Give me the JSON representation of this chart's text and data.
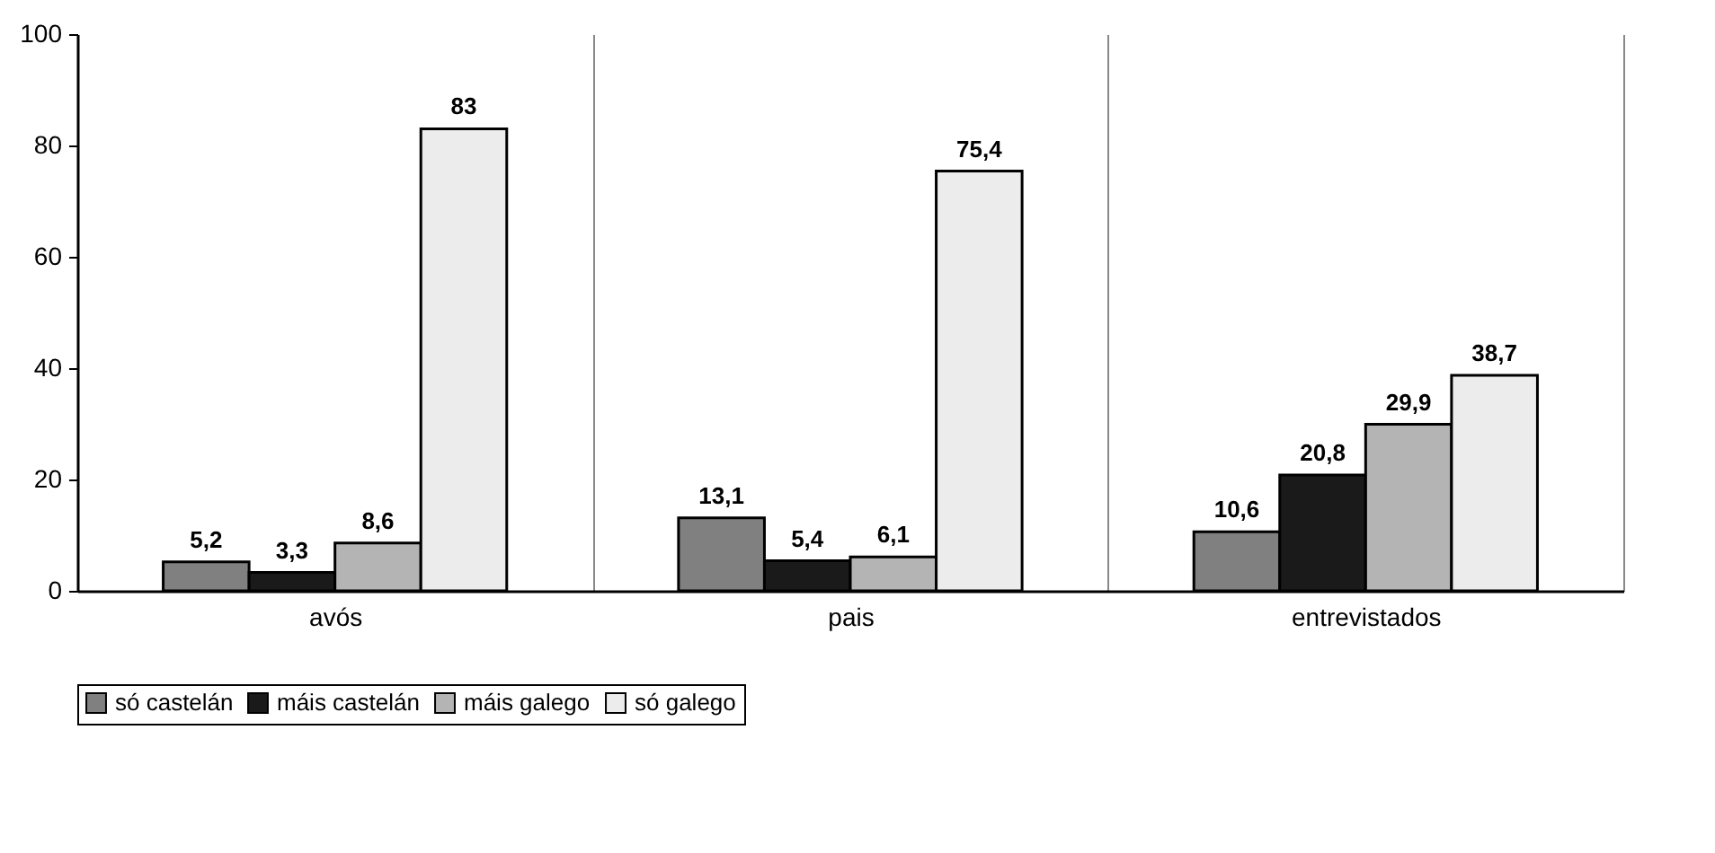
{
  "chart_data": {
    "type": "bar",
    "categories": [
      "avós",
      "pais",
      "entrevistados"
    ],
    "series": [
      {
        "name": "só castelán",
        "color": "#808080",
        "values": [
          5.2,
          13.1,
          10.6
        ],
        "value_labels": [
          "5,2",
          "13,1",
          "10,6"
        ]
      },
      {
        "name": "máis castelán",
        "color": "#1a1a1a",
        "values": [
          3.3,
          5.4,
          20.8
        ],
        "value_labels": [
          "3,3",
          "5,4",
          "20,8"
        ]
      },
      {
        "name": "máis galego",
        "color": "#b4b4b4",
        "values": [
          8.6,
          6.1,
          29.9
        ],
        "value_labels": [
          "8,6",
          "6,1",
          "29,9"
        ]
      },
      {
        "name": "só galego",
        "color": "#ececec",
        "values": [
          83,
          75.4,
          38.7
        ],
        "value_labels": [
          "83",
          "75,4",
          "38,7"
        ]
      }
    ],
    "ylim": [
      0,
      100
    ],
    "yticks": [
      0,
      20,
      40,
      60,
      80,
      100
    ],
    "grid": "x",
    "legend": "bottom"
  }
}
